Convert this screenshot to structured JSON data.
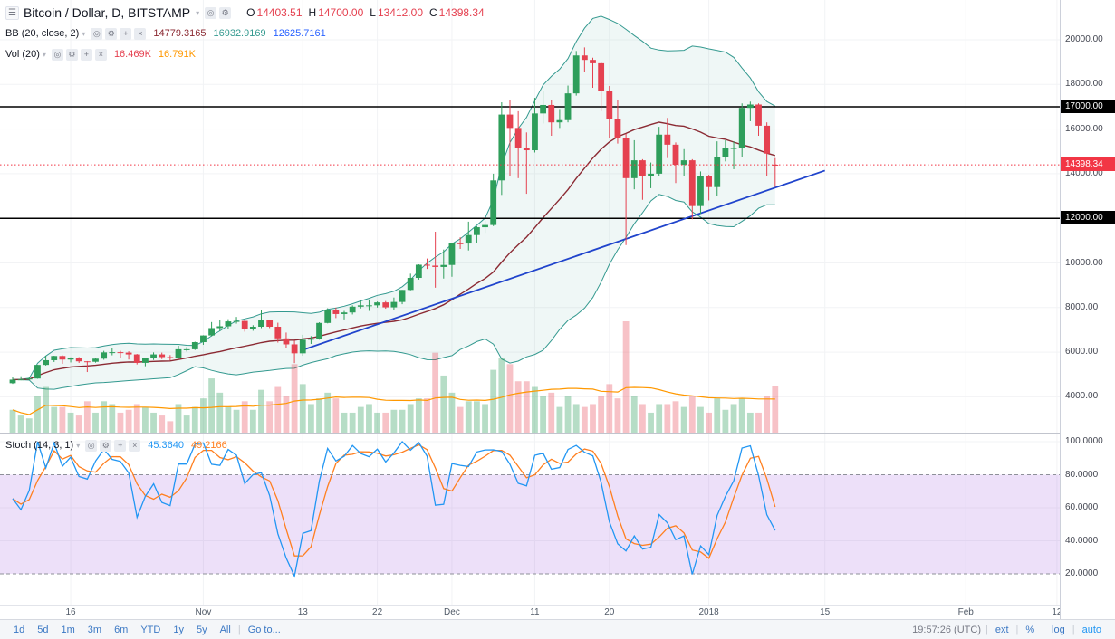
{
  "header": {
    "symbol_title": "Bitcoin / Dollar, D, BITSTAMP",
    "ohlc": {
      "o_label": "O",
      "o_value": "14403.51",
      "h_label": "H",
      "h_value": "14700.00",
      "l_label": "L",
      "l_value": "13412.00",
      "c_label": "C",
      "c_value": "14398.34",
      "value_color": "#e54150"
    }
  },
  "indicators": {
    "bb": {
      "label": "BB (20, close, 2)",
      "values": [
        "14779.3165",
        "16932.9169",
        "12625.7161"
      ],
      "colors": [
        "#8b2a33",
        "#33998f",
        "#2962ff"
      ]
    },
    "vol": {
      "label": "Vol (20)",
      "values": [
        "16.469K",
        "16.791K"
      ],
      "colors": [
        "#e54150",
        "#ff9800"
      ]
    },
    "stoch": {
      "label": "Stoch (14, 3, 1)",
      "values": [
        "45.3640",
        "49.2166"
      ],
      "colors": [
        "#2196f3",
        "#ff7f1f"
      ]
    }
  },
  "price_axis": {
    "ticks": [
      {
        "label": "20000.00",
        "price": 20000
      },
      {
        "label": "18000.00",
        "price": 18000
      },
      {
        "label": "16000.00",
        "price": 16000
      },
      {
        "label": "14000.00",
        "price": 14000
      },
      {
        "label": "10000.00",
        "price": 10000
      },
      {
        "label": "8000.00",
        "price": 8000
      },
      {
        "label": "6000.00",
        "price": 6000
      },
      {
        "label": "4000.00",
        "price": 4000
      }
    ],
    "badges": [
      {
        "label": "17000.00",
        "price": 17000,
        "bg": "#000000"
      },
      {
        "label": "12000.00",
        "price": 12000,
        "bg": "#000000"
      },
      {
        "label": "14398.34",
        "price": 14398.34,
        "bg": "#f23645"
      }
    ]
  },
  "stoch_axis": {
    "ticks": [
      {
        "label": "100.0000",
        "value": 100
      },
      {
        "label": "80.0000",
        "value": 80
      },
      {
        "label": "60.0000",
        "value": 60
      },
      {
        "label": "40.0000",
        "value": 40
      },
      {
        "label": "20.0000",
        "value": 20
      }
    ]
  },
  "time_axis": {
    "ticks": [
      {
        "label": "16",
        "day": 7
      },
      {
        "label": "Nov",
        "day": 23
      },
      {
        "label": "13",
        "day": 35
      },
      {
        "label": "22",
        "day": 44
      },
      {
        "label": "Dec",
        "day": 53
      },
      {
        "label": "11",
        "day": 63
      },
      {
        "label": "20",
        "day": 72
      },
      {
        "label": "2018",
        "day": 84
      },
      {
        "label": "15",
        "day": 98
      },
      {
        "label": "Feb",
        "day": 115
      },
      {
        "label": "12",
        "day": 126
      }
    ]
  },
  "toolbar": {
    "ranges": [
      "1d",
      "5d",
      "1m",
      "3m",
      "6m",
      "YTD",
      "1y",
      "5y",
      "All"
    ],
    "goto_label": "Go to...",
    "clock": "19:57:26 (UTC)",
    "right_items": [
      "ext",
      "%",
      "log",
      "auto"
    ],
    "link_color": "#3b78c4",
    "accent": "#2196f3"
  },
  "chart_data": {
    "type": "candlestick",
    "title": "Bitcoin / Dollar, D, BITSTAMP",
    "price_axis_visible_range": [
      2400,
      21780
    ],
    "stoch_axis_visible_range": [
      0,
      105
    ],
    "columns": [
      "open",
      "high",
      "low",
      "close",
      "volume_K"
    ],
    "candles": [
      [
        4610,
        4870,
        4580,
        4770,
        8
      ],
      [
        4770,
        4920,
        4740,
        4780,
        6
      ],
      [
        4780,
        4870,
        4750,
        4820,
        5
      ],
      [
        4820,
        5430,
        4810,
        5430,
        13
      ],
      [
        5430,
        5840,
        5400,
        5640,
        16
      ],
      [
        5640,
        5840,
        5560,
        5830,
        9
      ],
      [
        5830,
        5860,
        5480,
        5670,
        9
      ],
      [
        5670,
        5770,
        5540,
        5740,
        7
      ],
      [
        5740,
        5780,
        5520,
        5590,
        6
      ],
      [
        5590,
        5600,
        5110,
        5570,
        11
      ],
      [
        5570,
        5740,
        5530,
        5710,
        7
      ],
      [
        5710,
        6060,
        5660,
        5990,
        11
      ],
      [
        5990,
        6170,
        5860,
        6000,
        10
      ],
      [
        6000,
        6060,
        5720,
        5980,
        7
      ],
      [
        5980,
        6040,
        5670,
        5900,
        8
      ],
      [
        5900,
        5920,
        5450,
        5520,
        10
      ],
      [
        5520,
        5740,
        5370,
        5720,
        9
      ],
      [
        5720,
        5990,
        5650,
        5900,
        7
      ],
      [
        5900,
        5980,
        5690,
        5780,
        6
      ],
      [
        5780,
        5870,
        5630,
        5760,
        4
      ],
      [
        5760,
        6290,
        5710,
        6130,
        10
      ],
      [
        6130,
        6230,
        6030,
        6130,
        6
      ],
      [
        6130,
        6470,
        6100,
        6450,
        9
      ],
      [
        6450,
        6760,
        6330,
        6750,
        12
      ],
      [
        6750,
        7350,
        6710,
        7080,
        19
      ],
      [
        7080,
        7460,
        6950,
        7160,
        14
      ],
      [
        7160,
        7480,
        7060,
        7380,
        9
      ],
      [
        7380,
        7580,
        7280,
        7400,
        8
      ],
      [
        7400,
        7440,
        6920,
        7020,
        11
      ],
      [
        7020,
        7210,
        6960,
        7140,
        8
      ],
      [
        7140,
        7870,
        7080,
        7450,
        15
      ],
      [
        7450,
        7460,
        7080,
        7140,
        11
      ],
      [
        7140,
        7320,
        6430,
        6620,
        16
      ],
      [
        6620,
        6880,
        6190,
        6350,
        13
      ],
      [
        6350,
        6520,
        5510,
        5950,
        24
      ],
      [
        5950,
        6780,
        5840,
        6560,
        17
      ],
      [
        6560,
        6720,
        6370,
        6600,
        10
      ],
      [
        6600,
        7340,
        6560,
        7310,
        12
      ],
      [
        7310,
        7970,
        7290,
        7870,
        14
      ],
      [
        7870,
        8000,
        7530,
        7710,
        12
      ],
      [
        7710,
        7850,
        7470,
        7780,
        7
      ],
      [
        7780,
        8100,
        7690,
        8040,
        7
      ],
      [
        8040,
        8300,
        7960,
        8100,
        9
      ],
      [
        8100,
        8360,
        7850,
        8100,
        10
      ],
      [
        8100,
        8270,
        8000,
        8230,
        7
      ],
      [
        8230,
        8290,
        7950,
        8010,
        7
      ],
      [
        8010,
        8450,
        7900,
        8250,
        8
      ],
      [
        8250,
        8790,
        8150,
        8790,
        8
      ],
      [
        8790,
        9520,
        8770,
        9330,
        10
      ],
      [
        9330,
        9940,
        9250,
        9920,
        12
      ],
      [
        9920,
        10200,
        9730,
        9880,
        12
      ],
      [
        9880,
        11400,
        8890,
        9820,
        28
      ],
      [
        9820,
        10600,
        9300,
        9910,
        20
      ],
      [
        9910,
        10900,
        9380,
        10880,
        14
      ],
      [
        10880,
        11150,
        10630,
        10870,
        9
      ],
      [
        10870,
        11850,
        10560,
        11250,
        11
      ],
      [
        11250,
        11650,
        10900,
        11600,
        11
      ],
      [
        11600,
        11900,
        11350,
        11700,
        10
      ],
      [
        11700,
        14000,
        11650,
        13700,
        22
      ],
      [
        13700,
        17200,
        13050,
        16650,
        26
      ],
      [
        16650,
        17300,
        13900,
        16050,
        24
      ],
      [
        16050,
        16800,
        13800,
        15150,
        18
      ],
      [
        15150,
        15850,
        13100,
        15050,
        18
      ],
      [
        15050,
        17400,
        14950,
        16700,
        16
      ],
      [
        16700,
        17700,
        16250,
        17080,
        13
      ],
      [
        17080,
        17300,
        15700,
        16300,
        14
      ],
      [
        16300,
        16900,
        16050,
        16400,
        9
      ],
      [
        16400,
        17950,
        16300,
        17600,
        13
      ],
      [
        17600,
        19500,
        17500,
        19300,
        10
      ],
      [
        19300,
        19660,
        18550,
        19100,
        9
      ],
      [
        19100,
        19200,
        17850,
        18950,
        10
      ],
      [
        18950,
        19020,
        16800,
        17700,
        13
      ],
      [
        17700,
        17930,
        15600,
        16450,
        17
      ],
      [
        16450,
        17300,
        15350,
        15600,
        12
      ],
      [
        15600,
        15790,
        10800,
        13800,
        39
      ],
      [
        13800,
        15500,
        13300,
        14600,
        13
      ],
      [
        14600,
        14650,
        12830,
        13900,
        10
      ],
      [
        13900,
        14500,
        13350,
        14000,
        7
      ],
      [
        14000,
        16100,
        13900,
        15750,
        10
      ],
      [
        15750,
        16500,
        14700,
        15300,
        10
      ],
      [
        15300,
        15400,
        13580,
        14400,
        11
      ],
      [
        14400,
        15100,
        13900,
        14600,
        9
      ],
      [
        14600,
        14650,
        11960,
        12550,
        13
      ],
      [
        12550,
        14100,
        12200,
        13900,
        9
      ],
      [
        13900,
        13950,
        12800,
        13400,
        7
      ],
      [
        13400,
        15450,
        13000,
        14750,
        12
      ],
      [
        14750,
        15500,
        14550,
        15150,
        8
      ],
      [
        15150,
        15450,
        14200,
        15150,
        10
      ],
      [
        15150,
        17150,
        14750,
        16950,
        12
      ],
      [
        16950,
        17230,
        16350,
        17100,
        7
      ],
      [
        17100,
        17150,
        15700,
        16150,
        7
      ],
      [
        16150,
        16300,
        13900,
        14900,
        13
      ],
      [
        14403.51,
        14700,
        13412,
        14398.34,
        16.469
      ]
    ],
    "overlays": {
      "bollinger": {
        "period": 20,
        "stddev": 2
      },
      "volume_ma_period": 20,
      "hlines": [
        17000,
        12000
      ],
      "price_line": 14398.34,
      "trendline": {
        "i1": 35,
        "p1": 6100,
        "i2": 98,
        "p2": 14140
      }
    },
    "stoch": {
      "k_period": 14,
      "d_period": 3,
      "smoothing": 1,
      "band": [
        20,
        80
      ]
    },
    "colors": {
      "up": "#2e9e5b",
      "down": "#e54150",
      "vol_up": "rgba(46,158,91,0.35)",
      "vol_down": "rgba(229,65,80,0.32)",
      "bb_band": "#33998f",
      "bb_fill": "rgba(51,153,143,0.08)",
      "bb_basis": "#8b2a33",
      "vol_ma": "#ff9800",
      "trendline": "#2044cc",
      "hline": "#000000",
      "price_line": "#f23645",
      "stoch_k": "#2196f3",
      "stoch_d": "#ff7f1f",
      "stoch_band_fill": "rgba(155,81,224,0.18)",
      "stoch_band_border": "#8e9099",
      "grid": "#f2f3f5"
    }
  }
}
